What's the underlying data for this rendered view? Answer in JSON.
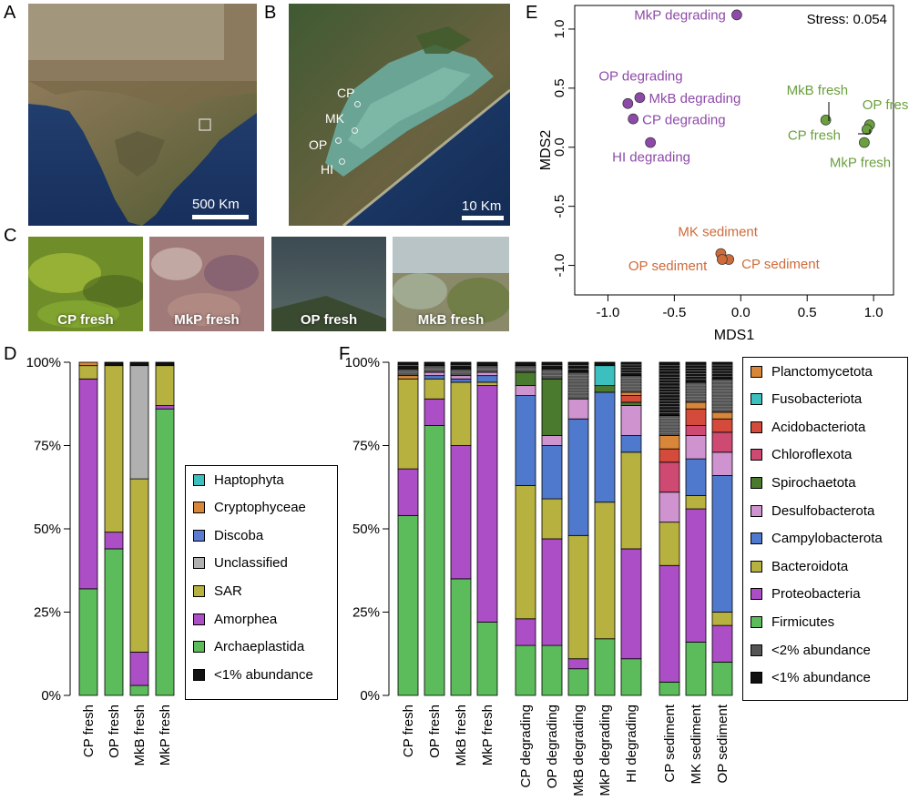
{
  "panels": {
    "A": "A",
    "B": "B",
    "C": "C",
    "D": "D",
    "E": "E",
    "F": "F"
  },
  "map_a": {
    "scale": "500 Km"
  },
  "map_b": {
    "scale": "10 Km",
    "sites": [
      "CP",
      "MK",
      "OP",
      "HI"
    ]
  },
  "photos": [
    "CP fresh",
    "MkP fresh",
    "OP fresh",
    "MkB fresh"
  ],
  "colors": {
    "Haptophyta": "#3bbfbf",
    "Cryptophyceae": "#d8873a",
    "Discoba": "#5b7ad1",
    "Unclassified": "#b0b0b0",
    "SAR": "#b7b13f",
    "Amorphea": "#ac4ec5",
    "Archaeplastida": "#5cbb5b",
    "lt1": "#111111",
    "Planctomycetota": "#d8873a",
    "Fusobacteriota": "#3bbfbf",
    "Acidobacteriota": "#d44b3c",
    "Chloroflexota": "#cf4a73",
    "Spirochaetota": "#4a7a2e",
    "Desulfobacterota": "#cf93cf",
    "Campylobacterota": "#4f79cc",
    "Bacteroidota": "#b7b13f",
    "Proteobacteria": "#ac4ec5",
    "Firmicutes": "#5cbb5b",
    "lt2": "#555555",
    "fresh": "#6aa03e",
    "degrading": "#8d4aa8",
    "sediment": "#cf6a3a"
  },
  "chart_data": [
    {
      "id": "D",
      "type": "bar",
      "stacked": true,
      "categories": [
        "CP fresh",
        "OP fresh",
        "MkB fresh",
        "MkP fresh"
      ],
      "yticks": [
        "0%",
        "25%",
        "50%",
        "75%",
        "100%"
      ],
      "ylim": [
        0,
        100
      ],
      "series": [
        {
          "name": "Archaeplastida",
          "values": [
            32,
            44,
            3,
            86
          ]
        },
        {
          "name": "Amorphea",
          "values": [
            63,
            5,
            10,
            1
          ]
        },
        {
          "name": "SAR",
          "values": [
            4,
            50,
            52,
            12
          ]
        },
        {
          "name": "Unclassified",
          "values": [
            0,
            0,
            34,
            0
          ]
        },
        {
          "name": "Discoba",
          "values": [
            0,
            0,
            0,
            0
          ]
        },
        {
          "name": "Cryptophyceae",
          "values": [
            1,
            0,
            0,
            0
          ]
        },
        {
          "name": "Haptophyta",
          "values": [
            0,
            0,
            0,
            0
          ]
        },
        {
          "name": "<1% abundance",
          "values": [
            0,
            1,
            1,
            1
          ]
        }
      ],
      "legend": [
        "Haptophyta",
        "Cryptophyceae",
        "Discoba",
        "Unclassified",
        "SAR",
        "Amorphea",
        "Archaeplastida",
        "<1% abundance"
      ]
    },
    {
      "id": "E",
      "type": "scatter",
      "xlabel": "MDS1",
      "ylabel": "MDS2",
      "xlim": [
        -1.25,
        1.15
      ],
      "ylim": [
        -1.25,
        1.2
      ],
      "xticks": [
        "-1.0",
        "-0.5",
        "0.0",
        "0.5",
        "1.0"
      ],
      "yticks": [
        "-1.0",
        "-0.5",
        "0.0",
        "0.5",
        "1.0"
      ],
      "annotation": "Stress: 0.054",
      "points": [
        {
          "label": "MkP degrading",
          "group": "degrading",
          "x": -0.03,
          "y": 1.12
        },
        {
          "label": "OP degrading",
          "group": "degrading",
          "x": -0.85,
          "y": 0.37
        },
        {
          "label": "MkB degrading",
          "group": "degrading",
          "x": -0.76,
          "y": 0.42
        },
        {
          "label": "CP degrading",
          "group": "degrading",
          "x": -0.81,
          "y": 0.24
        },
        {
          "label": "HI degrading",
          "group": "degrading",
          "x": -0.68,
          "y": 0.04
        },
        {
          "label": "MkB fresh",
          "group": "fresh",
          "x": 0.64,
          "y": 0.23
        },
        {
          "label": "OP fresh",
          "group": "fresh",
          "x": 0.97,
          "y": 0.19
        },
        {
          "label": "CP fresh",
          "group": "fresh",
          "x": 0.95,
          "y": 0.15
        },
        {
          "label": "MkP fresh",
          "group": "fresh",
          "x": 0.93,
          "y": 0.04
        },
        {
          "label": "MK sediment",
          "group": "sediment",
          "x": -0.15,
          "y": -0.9
        },
        {
          "label": "CP sediment",
          "group": "sediment",
          "x": -0.09,
          "y": -0.95
        },
        {
          "label": "OP sediment",
          "group": "sediment",
          "x": -0.14,
          "y": -0.95
        }
      ]
    },
    {
      "id": "F",
      "type": "bar",
      "stacked": true,
      "categories": [
        "CP fresh",
        "OP fresh",
        "MkB fresh",
        "MkP fresh",
        "CP degrading",
        "OP degrading",
        "MkB degrading",
        "MkP degrading",
        "HI degrading",
        "CP sediment",
        "MK sediment",
        "OP sediment"
      ],
      "yticks": [
        "0%",
        "25%",
        "50%",
        "75%",
        "100%"
      ],
      "ylim": [
        0,
        100
      ],
      "series": [
        {
          "name": "Firmicutes",
          "values": [
            54,
            81,
            35,
            22,
            15,
            15,
            8,
            17,
            11,
            4,
            16,
            10
          ]
        },
        {
          "name": "Proteobacteria",
          "values": [
            14,
            8,
            40,
            71,
            8,
            32,
            3,
            0,
            33,
            35,
            40,
            11
          ]
        },
        {
          "name": "Bacteroidota",
          "values": [
            27,
            6,
            19,
            1,
            40,
            12,
            37,
            41,
            29,
            13,
            4,
            4
          ]
        },
        {
          "name": "Campylobacterota",
          "values": [
            0,
            1,
            1,
            2,
            27,
            16,
            35,
            33,
            5,
            0,
            11,
            41
          ]
        },
        {
          "name": "Desulfobacterota",
          "values": [
            0,
            1,
            1,
            1,
            3,
            3,
            6,
            0,
            9,
            9,
            7,
            7
          ]
        },
        {
          "name": "Spirochaetota",
          "values": [
            0,
            0,
            0,
            0,
            4,
            17,
            0,
            2,
            1,
            0,
            0,
            0
          ]
        },
        {
          "name": "Chloroflexota",
          "values": [
            0,
            0,
            0,
            0,
            0,
            0,
            0,
            0,
            0,
            9,
            3,
            6
          ]
        },
        {
          "name": "Acidobacteriota",
          "values": [
            0,
            0,
            0,
            0,
            0,
            0,
            0,
            0,
            2,
            4,
            5,
            4
          ]
        },
        {
          "name": "Fusobacteriota",
          "values": [
            0,
            0,
            0,
            0,
            0,
            0,
            0,
            6,
            0,
            0,
            0,
            0
          ]
        },
        {
          "name": "Planctomycetota",
          "values": [
            1,
            0,
            0,
            0,
            0,
            0,
            0,
            0,
            1,
            4,
            2,
            2
          ]
        },
        {
          "name": "<2% abundance",
          "values": [
            2,
            2,
            2,
            2,
            2,
            3,
            8,
            0,
            5,
            6,
            6,
            10
          ]
        },
        {
          "name": "<1% abundance",
          "values": [
            2,
            1,
            2,
            1,
            1,
            2,
            3,
            1,
            4,
            16,
            6,
            5
          ]
        }
      ],
      "legend": [
        "Planctomycetota",
        "Fusobacteriota",
        "Acidobacteriota",
        "Chloroflexota",
        "Spirochaetota",
        "Desulfobacterota",
        "Campylobacterota",
        "Bacteroidota",
        "Proteobacteria",
        "Firmicutes",
        "<2% abundance",
        "<1% abundance"
      ]
    }
  ]
}
